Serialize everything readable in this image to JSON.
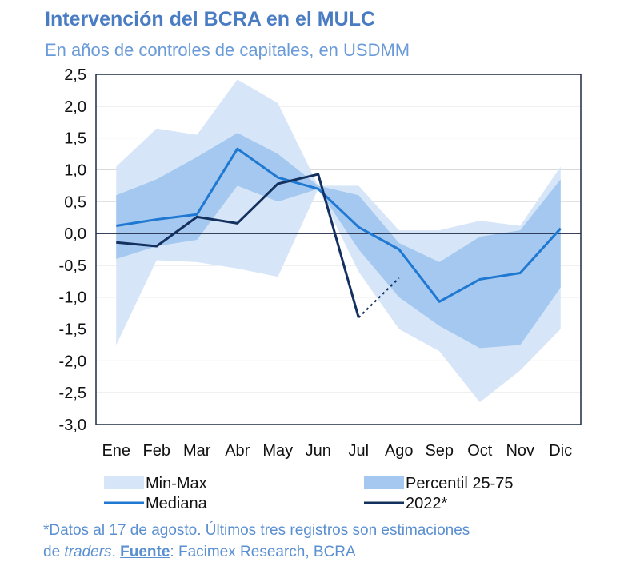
{
  "chart_data": {
    "type": "area",
    "title": "Intervención del BCRA en el MULC",
    "subtitle": "En años de controles de capitales, en USDMM",
    "categories": [
      "Ene",
      "Feb",
      "Mar",
      "Abr",
      "May",
      "Jun",
      "Jul",
      "Ago",
      "Sep",
      "Oct",
      "Nov",
      "Dic"
    ],
    "ylim": [
      -3.0,
      2.5
    ],
    "yticks": [
      "2,5",
      "2,0",
      "1,5",
      "1,0",
      "0,5",
      "0,0",
      "-0,5",
      "-1,0",
      "-1,5",
      "-2,0",
      "-2,5",
      "-3,0"
    ],
    "ytick_values": [
      2.5,
      2.0,
      1.5,
      1.0,
      0.5,
      0.0,
      -0.5,
      -1.0,
      -1.5,
      -2.0,
      -2.5,
      -3.0
    ],
    "grid": true,
    "series": [
      {
        "name": "Min-Max",
        "kind": "band",
        "color": "#d6e6f8",
        "upper": [
          1.05,
          1.65,
          1.55,
          2.42,
          2.05,
          0.75,
          0.75,
          0.05,
          0.05,
          0.2,
          0.12,
          1.05
        ],
        "lower": [
          -1.75,
          -0.42,
          -0.45,
          -0.55,
          -0.68,
          0.7,
          -0.6,
          -1.5,
          -1.85,
          -2.65,
          -2.15,
          -1.5
        ]
      },
      {
        "name": "Percentil 25-75",
        "kind": "band",
        "color": "#a4c8ef",
        "upper": [
          0.6,
          0.85,
          1.2,
          1.58,
          1.25,
          0.75,
          0.6,
          -0.15,
          -0.45,
          -0.05,
          0.05,
          0.85
        ],
        "lower": [
          -0.4,
          -0.2,
          -0.1,
          0.75,
          0.5,
          0.7,
          -0.25,
          -1.0,
          -1.45,
          -1.8,
          -1.75,
          -0.85
        ]
      },
      {
        "name": "Mediana",
        "kind": "line",
        "color": "#1f78d1",
        "values": [
          0.12,
          0.22,
          0.3,
          1.33,
          0.88,
          0.7,
          0.1,
          -0.25,
          -1.07,
          -0.72,
          -0.62,
          0.08
        ]
      },
      {
        "name": "2022*",
        "kind": "line",
        "color": "#14305e",
        "values": [
          -0.14,
          -0.2,
          0.26,
          0.16,
          0.78,
          0.93,
          -1.32,
          null,
          null,
          null,
          null,
          null
        ],
        "estimated_segment": {
          "from_x": "Jul",
          "from_y": -1.32,
          "to_x": "Ago",
          "to_y": -0.7
        }
      }
    ],
    "legend": [
      {
        "label": "Min-Max",
        "kind": "band",
        "color": "#d6e6f8"
      },
      {
        "label": "Percentil 25-75",
        "kind": "band",
        "color": "#a4c8ef"
      },
      {
        "label": "Mediana",
        "kind": "line",
        "color": "#1f78d1"
      },
      {
        "label": "2022*",
        "kind": "line",
        "color": "#14305e"
      }
    ],
    "legend_placement": "bottom"
  },
  "footnote": {
    "line1": "*Datos al 17 de agosto. Últimos tres registros son estimaciones",
    "line2_prefix": "de ",
    "line2_italic": "traders",
    "line2_mid": ". ",
    "fuente_label": "Fuente",
    "line2_suffix": ": Facimex Research, BCRA"
  }
}
